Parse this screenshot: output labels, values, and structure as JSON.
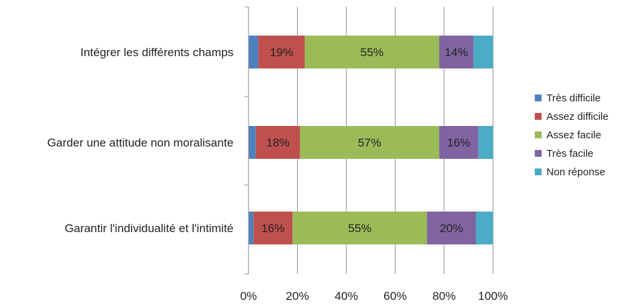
{
  "chart_data": {
    "type": "bar",
    "orientation": "horizontal",
    "stacked": true,
    "percent": true,
    "title": "",
    "xlabel": "",
    "ylabel": "",
    "xlim": [
      0,
      100
    ],
    "x_ticks": [
      "0%",
      "20%",
      "40%",
      "60%",
      "80%",
      "100%"
    ],
    "grid": true,
    "legend_position": "right",
    "categories": [
      "Intégrer les différents champs",
      "Garder une attitude non moralisante",
      "Garantir l'individualité et l'intimité"
    ],
    "series": [
      {
        "name": "Très difficile",
        "color": "#4F81BD",
        "values": [
          4,
          3,
          2
        ],
        "labels": [
          "",
          "",
          ""
        ]
      },
      {
        "name": "Assez difficile",
        "color": "#C0504D",
        "values": [
          19,
          18,
          16
        ],
        "labels": [
          "19%",
          "18%",
          "16%"
        ]
      },
      {
        "name": "Assez facile",
        "color": "#9BBB59",
        "values": [
          55,
          57,
          55
        ],
        "labels": [
          "55%",
          "57%",
          "55%"
        ]
      },
      {
        "name": "Très facile",
        "color": "#8064A2",
        "values": [
          14,
          16,
          20
        ],
        "labels": [
          "14%",
          "16%",
          "20%"
        ]
      },
      {
        "name": "Non réponse",
        "color": "#4BACC6",
        "values": [
          8,
          6,
          7
        ],
        "labels": [
          "",
          "",
          ""
        ]
      }
    ]
  }
}
